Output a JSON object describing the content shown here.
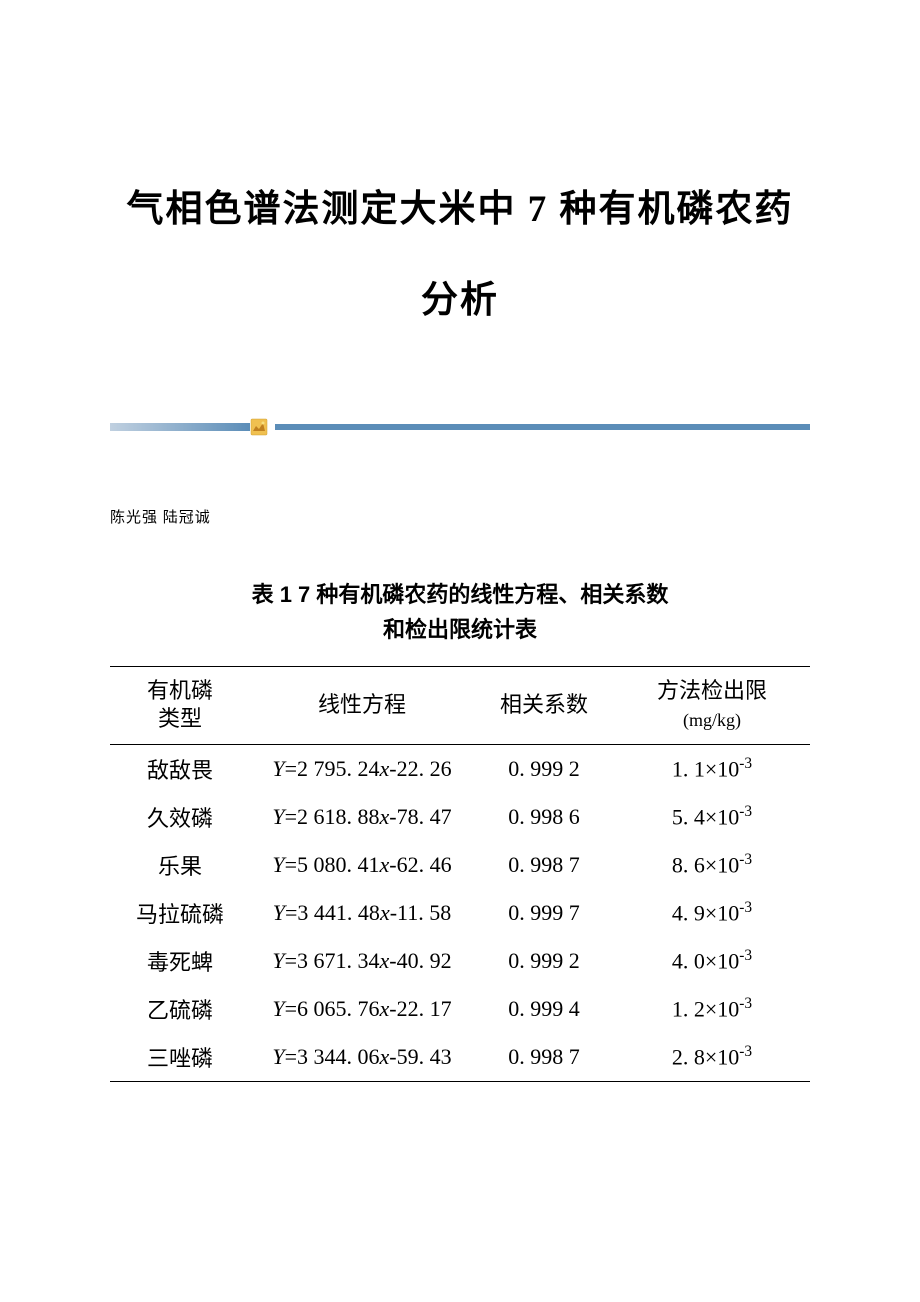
{
  "title_line1": "气相色谱法测定大米中 7 种有机磷农药",
  "title_line2": "分析",
  "divider_color_start": "#c0d0e0",
  "divider_color_end": "#5b8db8",
  "authors": "陈光强 陆冠诚",
  "table_title_line1": "表 1  7 种有机磷农药的线性方程、相关系数",
  "table_title_line2": "和检出限统计表",
  "table": {
    "columns": [
      {
        "label_line1": "有机磷",
        "label_line2": "类型"
      },
      {
        "label_line1": "线性方程",
        "label_line2": ""
      },
      {
        "label_line1": "相关系数",
        "label_line2": ""
      },
      {
        "label_line1": "方法检出限",
        "label_line2": "(mg/kg)"
      }
    ],
    "rows": [
      {
        "type": "敌敌畏",
        "eq_a": "2 795. 24",
        "eq_b": "22. 26",
        "corr": "0. 999 2",
        "lod_m": "1. 1",
        "lod_e": "-3"
      },
      {
        "type": "久效磷",
        "eq_a": "2 618. 88",
        "eq_b": "78. 47",
        "corr": "0. 998 6",
        "lod_m": "5. 4",
        "lod_e": "-3"
      },
      {
        "type": "乐果",
        "eq_a": "5 080. 41",
        "eq_b": "62. 46",
        "corr": "0. 998 7",
        "lod_m": "8. 6",
        "lod_e": "-3"
      },
      {
        "type": "马拉硫磷",
        "eq_a": "3 441. 48",
        "eq_b": "11. 58",
        "corr": "0. 999 7",
        "lod_m": "4. 9",
        "lod_e": "-3"
      },
      {
        "type": "毒死蜱",
        "eq_a": "3 671. 34",
        "eq_b": "40. 92",
        "corr": "0. 999 2",
        "lod_m": "4. 0",
        "lod_e": "-3"
      },
      {
        "type": "乙硫磷",
        "eq_a": "6 065. 76",
        "eq_b": "22. 17",
        "corr": "0. 999 4",
        "lod_m": "1. 2",
        "lod_e": "-3"
      },
      {
        "type": "三唑磷",
        "eq_a": "3 344. 06",
        "eq_b": "59. 43",
        "corr": "0. 998 7",
        "lod_m": "2. 8",
        "lod_e": "-3"
      }
    ]
  }
}
